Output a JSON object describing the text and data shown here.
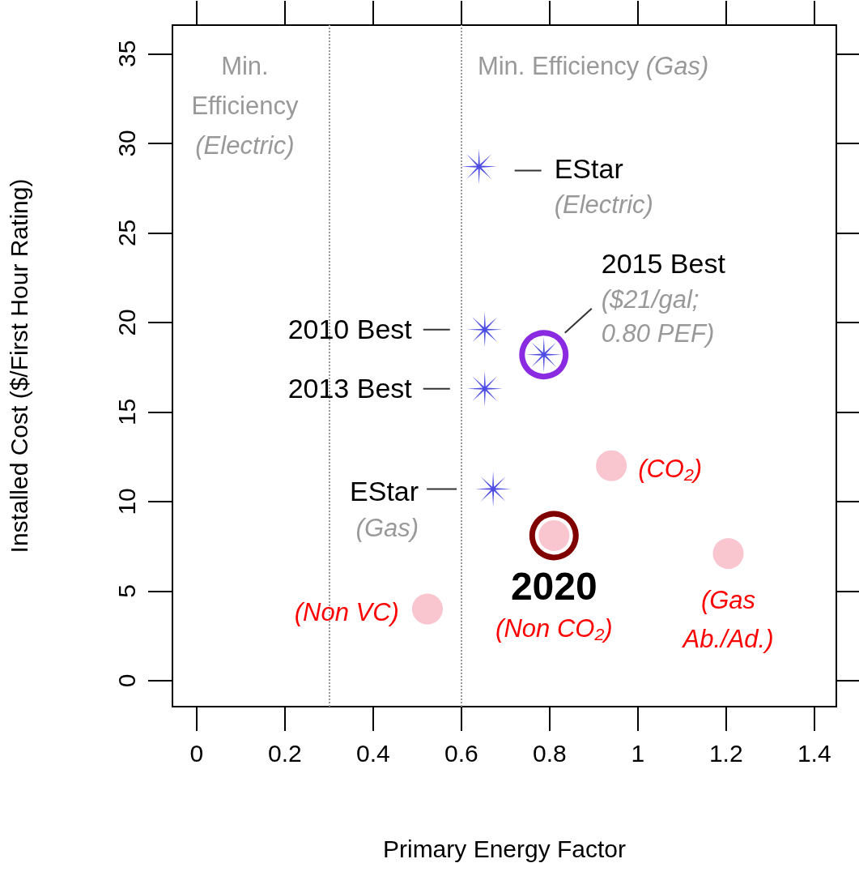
{
  "chart_data": {
    "type": "scatter",
    "xlabel": "Primary Energy Factor",
    "ylabel": "Installed Cost ($/First Hour Rating)",
    "xlim": [
      -0.055,
      1.45
    ],
    "xticks": [
      0,
      0.2,
      0.4,
      0.6,
      0.8,
      1,
      1.2,
      1.4
    ],
    "ylim": [
      -1.45,
      36.6
    ],
    "yticks": [
      0,
      5,
      10,
      15,
      20,
      25,
      30,
      35
    ],
    "grid": false,
    "series": [
      {
        "color": "#8a2be2",
        "x": [
          0.787
        ],
        "values": [
          18.2
        ]
      },
      {
        "color": "#800000",
        "x": [
          0.81
        ],
        "values": [
          8.1
        ]
      },
      {
        "color": "#2222dd",
        "marker": "star",
        "x": [
          0.64,
          0.787,
          0.653,
          0.653,
          0.672
        ],
        "values": [
          28.7,
          18.2,
          19.6,
          16.3,
          10.7
        ]
      },
      {
        "color": "#f7b8c4",
        "marker": "circle",
        "x": [
          0.94,
          0.81,
          1.205,
          0.523
        ],
        "values": [
          12.0,
          8.1,
          7.1,
          4.0
        ]
      }
    ],
    "ref_lines": [
      {
        "axis": "x",
        "value": 0.3,
        "label": "Min. Efficiency (Electric)",
        "color": "#999999",
        "line_style": "dotted"
      },
      {
        "axis": "x",
        "value": 0.6,
        "label": "Min. Efficiency (Gas)",
        "color": "#999999",
        "line_style": "dotted"
      }
    ],
    "annotations": [
      {
        "text": "EStar (Electric)",
        "x": 0.64,
        "y": 28.7
      },
      {
        "text": "2015 Best ($21/gal; 0.80 PEF)",
        "x": 0.787,
        "y": 18.2
      },
      {
        "text": "2010 Best",
        "x": 0.653,
        "y": 19.6
      },
      {
        "text": "2013 Best",
        "x": 0.653,
        "y": 16.3
      },
      {
        "text": "EStar (Gas)",
        "x": 0.672,
        "y": 10.7
      },
      {
        "text": "(CO₂)",
        "x": 0.94,
        "y": 12.0
      },
      {
        "text": "2020 (Non CO₂)",
        "x": 0.81,
        "y": 8.1
      },
      {
        "text": "(Gas Ab./Ad.)",
        "x": 1.205,
        "y": 7.1
      },
      {
        "text": "(Non VC)",
        "x": 0.523,
        "y": 4.0
      }
    ]
  }
}
